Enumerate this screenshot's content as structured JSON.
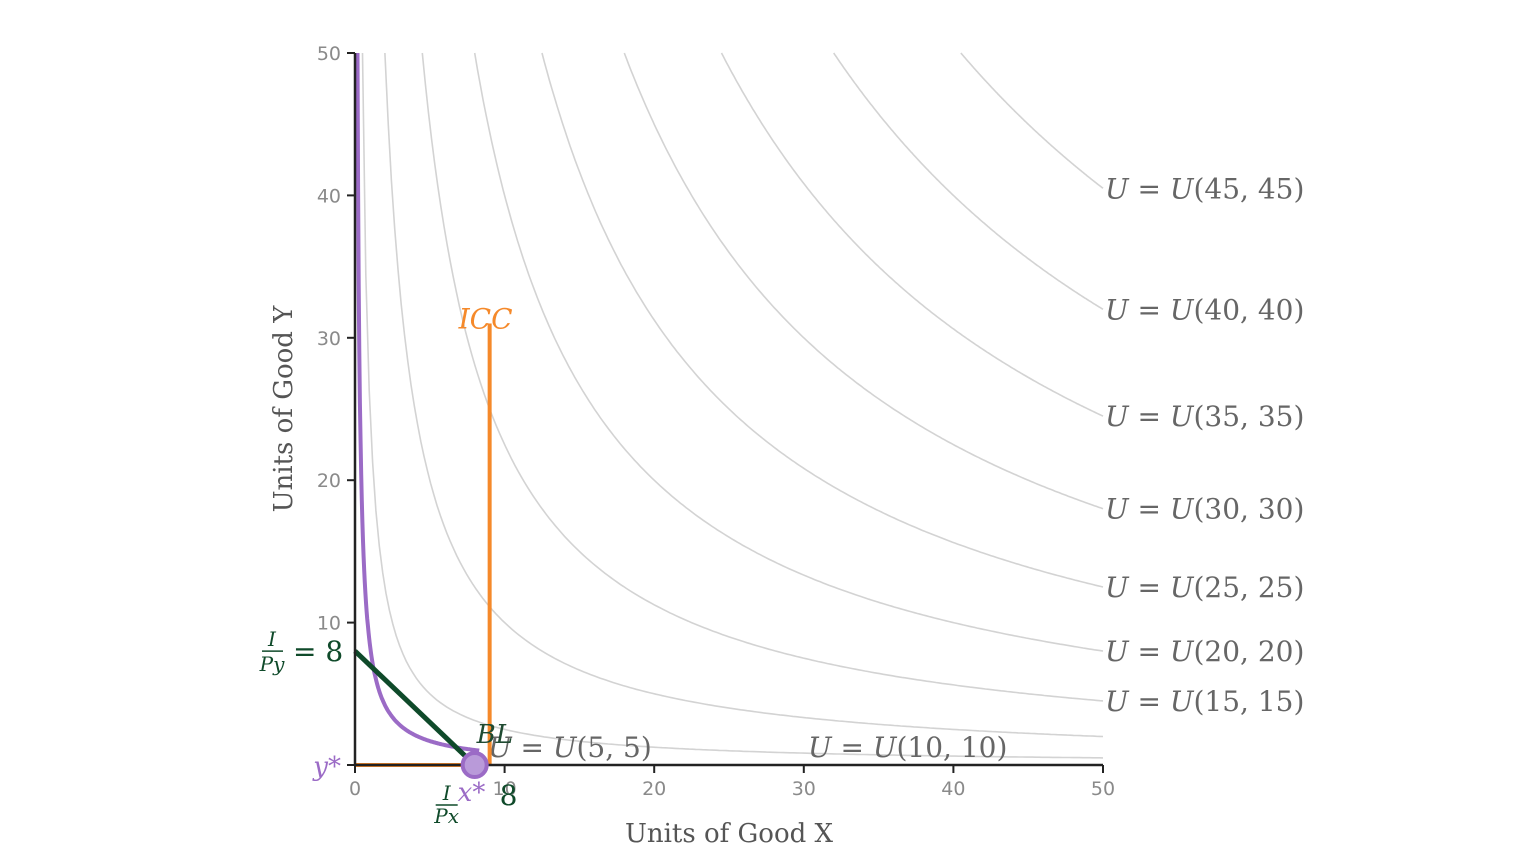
{
  "chart_data": {
    "type": "line",
    "title": "",
    "xlabel": "Units of Good X",
    "ylabel": "Units of Good Y",
    "xlim": [
      0,
      50
    ],
    "ylim": [
      0,
      50
    ],
    "xticks": [
      0,
      10,
      20,
      30,
      40,
      50
    ],
    "yticks": [
      0,
      10,
      20,
      30,
      40,
      50
    ],
    "grid": false,
    "indifference_curves": [
      {
        "name": "U = U(5, 5)",
        "label_prefix": "U",
        "label_args": "(5, 5)",
        "ref": 5
      },
      {
        "name": "U = U(10, 10)",
        "label_prefix": "U",
        "label_args": "(10, 10)",
        "ref": 10
      },
      {
        "name": "U = U(15, 15)",
        "label_prefix": "U",
        "label_args": "(15, 15)",
        "ref": 15
      },
      {
        "name": "U = U(20, 20)",
        "label_prefix": "U",
        "label_args": "(20, 20)",
        "ref": 20
      },
      {
        "name": "U = U(25, 25)",
        "label_prefix": "U",
        "label_args": "(25, 25)",
        "ref": 25
      },
      {
        "name": "U = U(30, 30)",
        "label_prefix": "U",
        "label_args": "(30, 30)",
        "ref": 30
      },
      {
        "name": "U = U(35, 35)",
        "label_prefix": "U",
        "label_args": "(35, 35)",
        "ref": 35
      },
      {
        "name": "U = U(40, 40)",
        "label_prefix": "U",
        "label_args": "(40, 40)",
        "ref": 40
      },
      {
        "name": "U = U(45, 45)",
        "label_prefix": "U",
        "label_args": "(45, 45)",
        "ref": 45
      }
    ],
    "budget_line": {
      "label": "BL",
      "x_intercept": 8,
      "y_intercept": 8,
      "color": "#0f4a2a"
    },
    "income_consumption_curve": {
      "label": "ICC",
      "x": 9,
      "y_range": [
        0,
        31
      ],
      "color": "#f5892a"
    },
    "optimal_indifference_curve": {
      "ref": 2.9,
      "color": "#9b6bc6"
    },
    "optimum": {
      "x": 8,
      "y": 0,
      "color": "#9b6bc6",
      "x_label": "x*",
      "y_label": "y*",
      "x_tick_readout": "8"
    },
    "intercept_labels": {
      "y_numerator": "I",
      "y_denominator": "Py",
      "y_value": "= 8",
      "x_numerator": "I",
      "x_denominator": "Px",
      "x_value": "= 8"
    },
    "colors": {
      "indifference": "#d3d3d3",
      "axis": "#222222",
      "tick_text": "#8a8a8a"
    }
  }
}
